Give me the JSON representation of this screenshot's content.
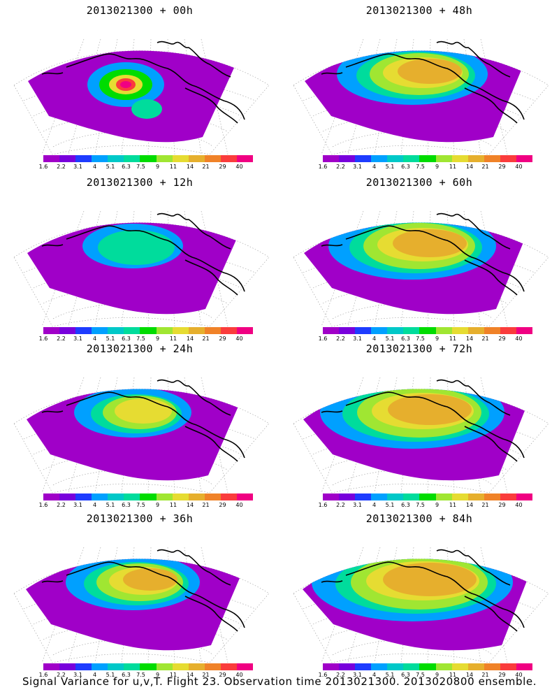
{
  "panels": [
    {
      "title": "2013021300 + 00h",
      "lead_hours": 0
    },
    {
      "title": "2013021300 + 48h",
      "lead_hours": 48
    },
    {
      "title": "2013021300 + 12h",
      "lead_hours": 12
    },
    {
      "title": "2013021300 + 60h",
      "lead_hours": 60
    },
    {
      "title": "2013021300 + 24h",
      "lead_hours": 24
    },
    {
      "title": "2013021300 + 72h",
      "lead_hours": 72
    },
    {
      "title": "2013021300 + 36h",
      "lead_hours": 36
    },
    {
      "title": "2013021300 + 84h",
      "lead_hours": 84
    }
  ],
  "colorbar": {
    "labels": [
      "1.6",
      "2.2",
      "3.1",
      "4",
      "5.1",
      "6.3",
      "7.5",
      "9",
      "11",
      "14",
      "21",
      "29",
      "40"
    ],
    "colors": [
      "#a000c8",
      "#7800dc",
      "#1e3cff",
      "#00a0ff",
      "#00c8c8",
      "#00dc9c",
      "#00dc00",
      "#a0e632",
      "#e6dc32",
      "#e6af2d",
      "#f08228",
      "#fa3c3c",
      "#f00082"
    ]
  },
  "caption": "Signal Variance for u,v,T. Flight 23. Observation time 2013021300. 2013020800 ensemble."
}
